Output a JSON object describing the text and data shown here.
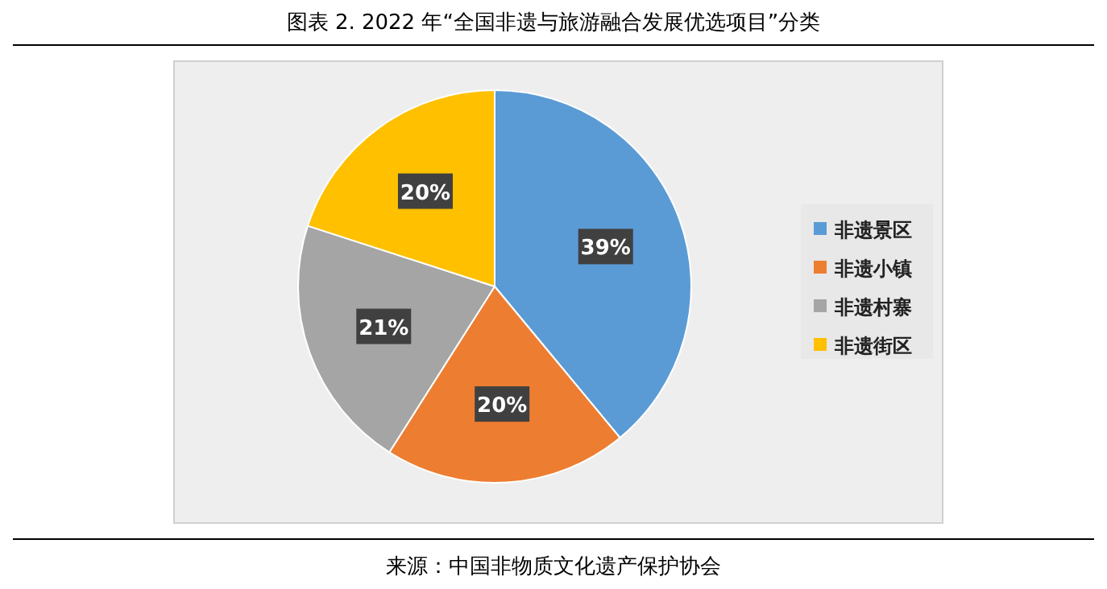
{
  "chart_data": {
    "type": "pie",
    "title": "图表 2. 2022 年“全国非遗与旅游融合发展优选项目”分类",
    "categories": [
      "非遗景区",
      "非遗小镇",
      "非遗村寨",
      "非遗街区"
    ],
    "values": [
      39,
      20,
      21,
      20
    ],
    "colors": [
      "#5b9bd5",
      "#ed7d31",
      "#a5a5a5",
      "#ffc000"
    ],
    "value_labels": [
      "39%",
      "20%",
      "21%",
      "20%"
    ],
    "legend": "right",
    "annotations": [
      "来源：中国非物质文化遗产保护协会"
    ]
  }
}
